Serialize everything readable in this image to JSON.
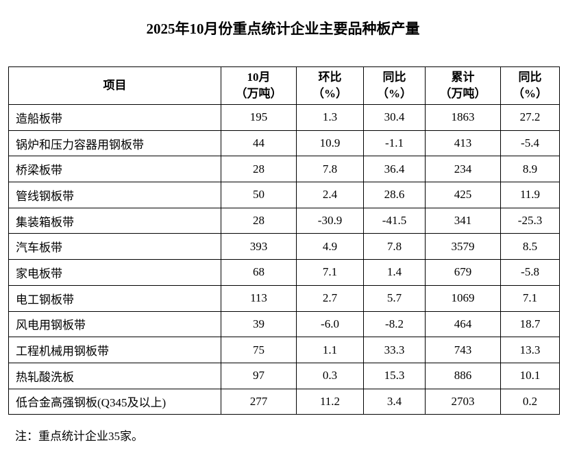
{
  "header": {
    "title": "2025年10月份重点统计企业主要品种板产量"
  },
  "table": {
    "columns": [
      {
        "lines": [
          "项目"
        ]
      },
      {
        "lines": [
          "10月",
          "（万吨）"
        ]
      },
      {
        "lines": [
          "环比",
          "（%）"
        ]
      },
      {
        "lines": [
          "同比",
          "（%）"
        ]
      },
      {
        "lines": [
          "累计",
          "（万吨）"
        ]
      },
      {
        "lines": [
          "同比",
          "（%）"
        ]
      }
    ],
    "rows": [
      [
        "造船板带",
        "195",
        "1.3",
        "30.4",
        "1863",
        "27.2"
      ],
      [
        "锅炉和压力容器用钢板带",
        "44",
        "10.9",
        "-1.1",
        "413",
        "-5.4"
      ],
      [
        "桥梁板带",
        "28",
        "7.8",
        "36.4",
        "234",
        "8.9"
      ],
      [
        "管线钢板带",
        "50",
        "2.4",
        "28.6",
        "425",
        "11.9"
      ],
      [
        "集装箱板带",
        "28",
        "-30.9",
        "-41.5",
        "341",
        "-25.3"
      ],
      [
        "汽车板带",
        "393",
        "4.9",
        "7.8",
        "3579",
        "8.5"
      ],
      [
        "家电板带",
        "68",
        "7.1",
        "1.4",
        "679",
        "-5.8"
      ],
      [
        "电工钢板带",
        "113",
        "2.7",
        "5.7",
        "1069",
        "7.1"
      ],
      [
        "风电用钢板带",
        "39",
        "-6.0",
        "-8.2",
        "464",
        "18.7"
      ],
      [
        "工程机械用钢板带",
        "75",
        "1.1",
        "33.3",
        "743",
        "13.3"
      ],
      [
        "热轧酸洗板",
        "97",
        "0.3",
        "15.3",
        "886",
        "10.1"
      ],
      [
        "低合金高强钢板(Q345及以上)",
        "277",
        "11.2",
        "3.4",
        "2703",
        "0.2"
      ]
    ]
  },
  "footer": {
    "note": "注：重点统计企业35家。"
  }
}
